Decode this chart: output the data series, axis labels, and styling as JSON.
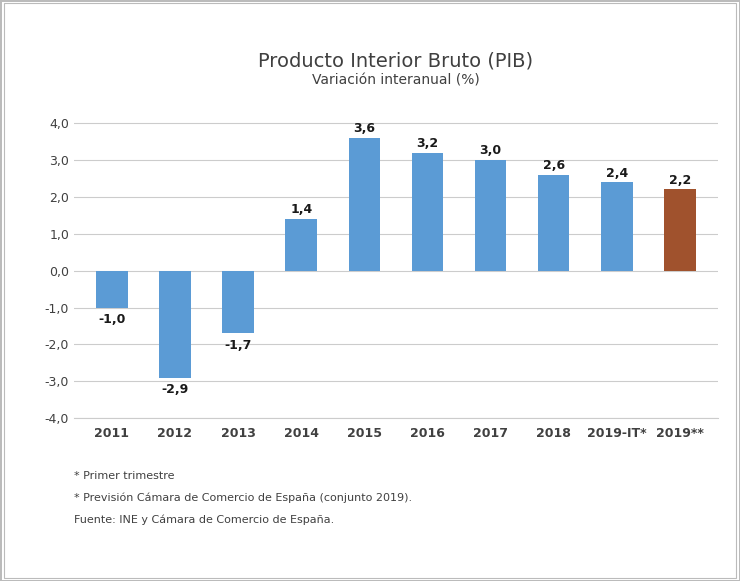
{
  "categories": [
    "2011",
    "2012",
    "2013",
    "2014",
    "2015",
    "2016",
    "2017",
    "2018",
    "2019-IT*",
    "2019**"
  ],
  "values": [
    -1.0,
    -2.9,
    -1.7,
    1.4,
    3.6,
    3.2,
    3.0,
    2.6,
    2.4,
    2.2
  ],
  "bar_colors": [
    "#5b9bd5",
    "#5b9bd5",
    "#5b9bd5",
    "#5b9bd5",
    "#5b9bd5",
    "#5b9bd5",
    "#5b9bd5",
    "#5b9bd5",
    "#5b9bd5",
    "#a0522d"
  ],
  "title_line1": "Producto Interior Bruto (PIB)",
  "title_line2": "Variación interanual (%)",
  "ylim": [
    -4.0,
    4.5
  ],
  "ylim_display": [
    -4.0,
    4.0
  ],
  "yticks": [
    -4.0,
    -3.0,
    -2.0,
    -1.0,
    0.0,
    1.0,
    2.0,
    3.0,
    4.0
  ],
  "ytick_labels": [
    "-4,0",
    "-3,0",
    "-2,0",
    "-1,0",
    "0,0",
    "1,0",
    "2,0",
    "3,0",
    "4,0"
  ],
  "value_labels": [
    "-1,0",
    "-2,9",
    "-1,7",
    "1,4",
    "3,6",
    "3,2",
    "3,0",
    "2,6",
    "2,4",
    "2,2"
  ],
  "footnote1": "* Primer trimestre",
  "footnote2": "* Previsión Cámara de Comercio de España (conjunto 2019).",
  "footnote3": "Fuente: INE y Cámara de Comercio de España.",
  "title_fontsize": 14,
  "subtitle_fontsize": 10,
  "label_fontsize": 9,
  "tick_fontsize": 9,
  "footnote_fontsize": 8,
  "background_color": "#ffffff",
  "grid_color": "#cccccc",
  "text_color": "#404040",
  "bar_width": 0.5
}
